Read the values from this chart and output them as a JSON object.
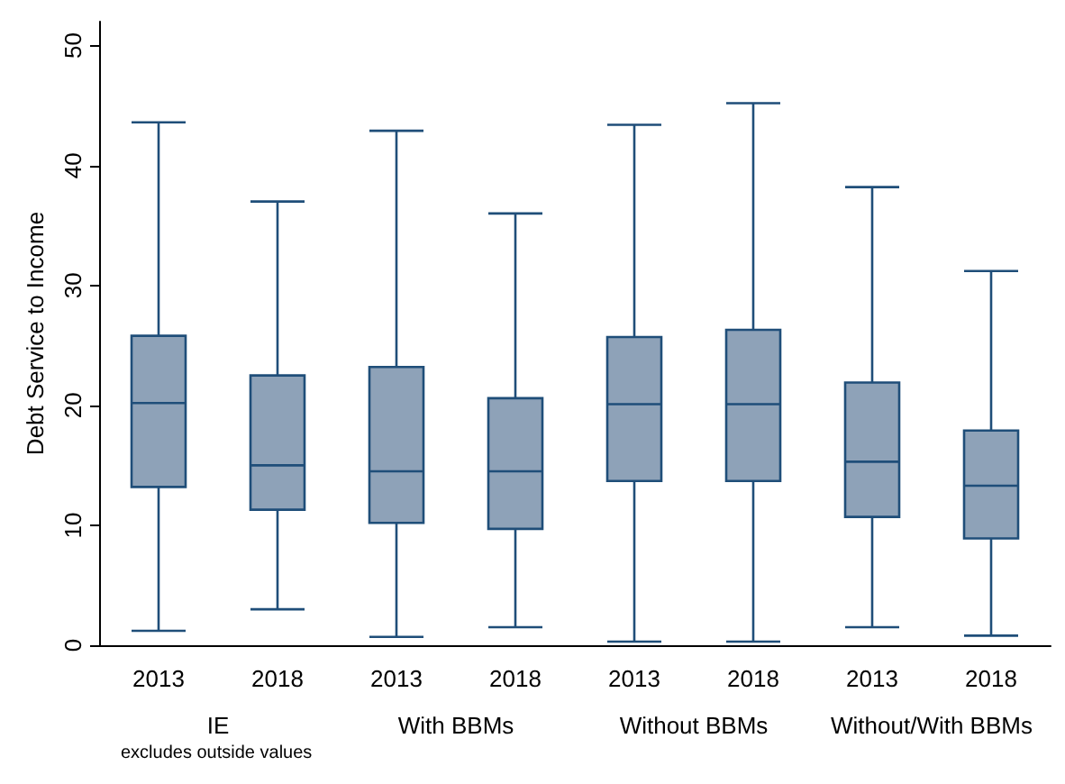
{
  "chart_data": {
    "type": "box",
    "ylabel": "Debt Service to Income",
    "categories": [
      "2013",
      "2018",
      "2013",
      "2018",
      "2013",
      "2018",
      "2013",
      "2018"
    ],
    "boxes": [
      {
        "low": 1.2,
        "q1": 13.2,
        "median": 20.2,
        "q3": 25.8,
        "high": 43.6
      },
      {
        "low": 3.0,
        "q1": 11.3,
        "median": 15.0,
        "q3": 22.5,
        "high": 37.0
      },
      {
        "low": 0.7,
        "q1": 10.2,
        "median": 14.5,
        "q3": 23.2,
        "high": 42.9
      },
      {
        "low": 1.5,
        "q1": 9.7,
        "median": 14.5,
        "q3": 20.6,
        "high": 36.0
      },
      {
        "low": 0.3,
        "q1": 13.7,
        "median": 20.1,
        "q3": 25.7,
        "high": 43.4
      },
      {
        "low": 0.3,
        "q1": 13.7,
        "median": 20.1,
        "q3": 26.3,
        "high": 45.2
      },
      {
        "low": 1.5,
        "q1": 10.7,
        "median": 15.3,
        "q3": 21.9,
        "high": 38.2
      },
      {
        "low": 0.8,
        "q1": 8.9,
        "median": 13.3,
        "q3": 17.9,
        "high": 31.2
      }
    ],
    "color": "#8ea2b8",
    "ylim": [
      0,
      52
    ],
    "yticks": [
      0,
      10,
      20,
      30,
      40,
      50
    ],
    "annotations": [
      "IE",
      "With BBMs",
      "Without BBMs",
      "Without/With BBMs",
      "excludes outside values"
    ]
  }
}
